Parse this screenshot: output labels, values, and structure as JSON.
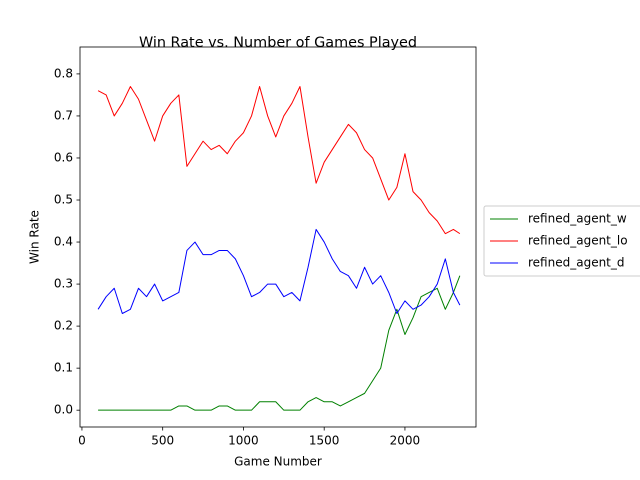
{
  "chart_data": {
    "type": "line",
    "title": "Win Rate vs. Number of Games Played",
    "x_label": "Game Number",
    "y_label": "Win Rate",
    "x": [
      100,
      150,
      200,
      250,
      300,
      350,
      400,
      450,
      500,
      550,
      600,
      650,
      700,
      750,
      800,
      850,
      900,
      950,
      1000,
      1050,
      1100,
      1150,
      1200,
      1250,
      1300,
      1350,
      1400,
      1450,
      1500,
      1550,
      1600,
      1650,
      1700,
      1750,
      1800,
      1850,
      1900,
      1950,
      2000,
      2050,
      2100,
      2150,
      2200,
      2250,
      2300,
      2340
    ],
    "series": [
      {
        "name": "refined_agent_w",
        "color": "#008000",
        "values": [
          0,
          0,
          0,
          0,
          0,
          0,
          0,
          0,
          0,
          0,
          0.01,
          0.01,
          0,
          0,
          0,
          0.01,
          0.01,
          0,
          0,
          0,
          0.02,
          0.02,
          0.02,
          0,
          0,
          0,
          0.02,
          0.03,
          0.02,
          0.02,
          0.01,
          0.02,
          0.03,
          0.04,
          0.07,
          0.1,
          0.19,
          0.24,
          0.18,
          0.22,
          0.27,
          0.28,
          0.29,
          0.24,
          0.28,
          0.32
        ]
      },
      {
        "name": "refined_agent_lo",
        "color": "#ff0000",
        "values": [
          0.76,
          0.75,
          0.7,
          0.73,
          0.77,
          0.74,
          0.69,
          0.64,
          0.7,
          0.73,
          0.75,
          0.58,
          0.61,
          0.64,
          0.62,
          0.63,
          0.61,
          0.64,
          0.66,
          0.7,
          0.77,
          0.7,
          0.65,
          0.7,
          0.73,
          0.77,
          0.65,
          0.54,
          0.59,
          0.62,
          0.65,
          0.68,
          0.66,
          0.62,
          0.6,
          0.55,
          0.5,
          0.53,
          0.61,
          0.52,
          0.5,
          0.47,
          0.45,
          0.42,
          0.43,
          0.42
        ]
      },
      {
        "name": "refined_agent_d",
        "color": "#0000ff",
        "values": [
          0.24,
          0.27,
          0.29,
          0.23,
          0.24,
          0.29,
          0.27,
          0.3,
          0.26,
          0.27,
          0.28,
          0.38,
          0.4,
          0.37,
          0.37,
          0.38,
          0.38,
          0.36,
          0.32,
          0.27,
          0.28,
          0.3,
          0.3,
          0.27,
          0.28,
          0.26,
          0.34,
          0.43,
          0.4,
          0.36,
          0.33,
          0.32,
          0.29,
          0.34,
          0.3,
          0.32,
          0.28,
          0.23,
          0.26,
          0.24,
          0.25,
          0.27,
          0.3,
          0.36,
          0.28,
          0.25
        ]
      }
    ],
    "xlim": [
      -12,
      2440
    ],
    "ylim": [
      -0.04,
      0.864
    ],
    "xticks": [
      0,
      500,
      1000,
      1500,
      2000
    ],
    "yticks": [
      {
        "value": 0,
        "label": "0.0"
      },
      0.1,
      0.2,
      0.3,
      0.4,
      0.5,
      0.6,
      0.7,
      0.8
    ],
    "legend": "right"
  }
}
